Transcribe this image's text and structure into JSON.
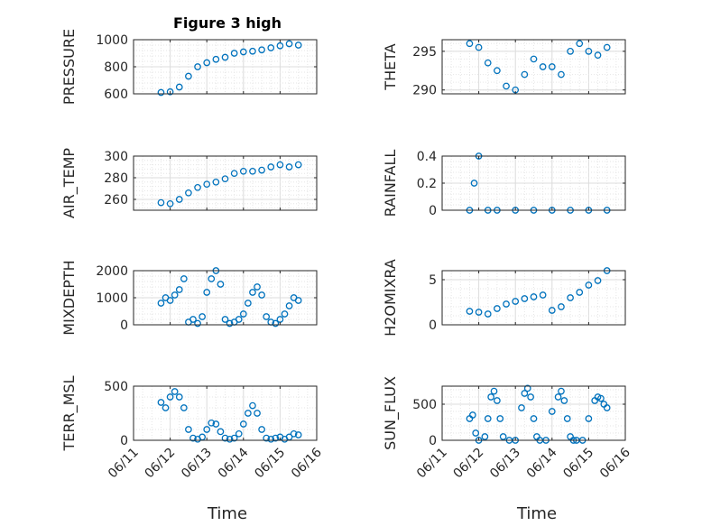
{
  "figure": {
    "title": "Figure 3 high",
    "xlabel": "Time",
    "date_ticks": [
      "06/11",
      "06/12",
      "06/13",
      "06/14",
      "06/15",
      "06/16"
    ],
    "marker": "open-circle",
    "marker_color": "#0072BD",
    "grid": true,
    "minor_grid": true
  },
  "chart_data": [
    {
      "type": "scatter",
      "ylabel": "PRESSURE",
      "ylim": [
        600,
        1000
      ],
      "yticks": [
        600,
        800,
        1000
      ],
      "xlim": [
        "06/11",
        "06/16"
      ],
      "x": [
        "06/11 18:00",
        "06/12 00:00",
        "06/12 06:00",
        "06/12 12:00",
        "06/12 18:00",
        "06/13 00:00",
        "06/13 06:00",
        "06/13 12:00",
        "06/13 18:00",
        "06/14 00:00",
        "06/14 06:00",
        "06/14 12:00",
        "06/14 18:00",
        "06/15 00:00",
        "06/15 06:00",
        "06/15 12:00"
      ],
      "y": [
        610,
        615,
        650,
        730,
        800,
        830,
        855,
        870,
        900,
        910,
        915,
        925,
        940,
        955,
        970,
        960
      ]
    },
    {
      "type": "scatter",
      "ylabel": "THETA",
      "ylim": [
        289.5,
        296.5
      ],
      "yticks": [
        290,
        295
      ],
      "xlim": [
        "06/11",
        "06/16"
      ],
      "x": [
        "06/11 18:00",
        "06/12 00:00",
        "06/12 06:00",
        "06/12 12:00",
        "06/12 18:00",
        "06/13 00:00",
        "06/13 06:00",
        "06/13 12:00",
        "06/13 18:00",
        "06/14 00:00",
        "06/14 06:00",
        "06/14 12:00",
        "06/14 18:00",
        "06/15 00:00",
        "06/15 06:00",
        "06/15 12:00"
      ],
      "y": [
        296.0,
        295.5,
        293.5,
        292.5,
        290.5,
        290.0,
        292.0,
        294.0,
        293.0,
        293.0,
        292.0,
        295.0,
        296.0,
        295.0,
        294.5,
        295.5
      ]
    },
    {
      "type": "scatter",
      "ylabel": "AIR_TEMP",
      "ylim": [
        250,
        300
      ],
      "yticks": [
        260,
        280,
        300
      ],
      "xlim": [
        "06/11",
        "06/16"
      ],
      "x": [
        "06/11 18:00",
        "06/12 00:00",
        "06/12 06:00",
        "06/12 12:00",
        "06/12 18:00",
        "06/13 00:00",
        "06/13 06:00",
        "06/13 12:00",
        "06/13 18:00",
        "06/14 00:00",
        "06/14 06:00",
        "06/14 12:00",
        "06/14 18:00",
        "06/15 00:00",
        "06/15 06:00",
        "06/15 12:00"
      ],
      "y": [
        257,
        256,
        260,
        266,
        271,
        274,
        276,
        279,
        284,
        286,
        286,
        287,
        290,
        292,
        290,
        292
      ]
    },
    {
      "type": "scatter",
      "ylabel": "RAINFALL",
      "ylim": [
        0,
        0.4
      ],
      "yticks": [
        0,
        0.2,
        0.4
      ],
      "xlim": [
        "06/11",
        "06/16"
      ],
      "x": [
        "06/11 18:00",
        "06/11 21:00",
        "06/12 00:00",
        "06/12 06:00",
        "06/12 12:00",
        "06/13 00:00",
        "06/13 12:00",
        "06/14 00:00",
        "06/14 12:00",
        "06/15 00:00",
        "06/15 12:00"
      ],
      "y": [
        0,
        0.2,
        0.4,
        0,
        0,
        0,
        0,
        0,
        0,
        0,
        0
      ]
    },
    {
      "type": "scatter",
      "ylabel": "MIXDEPTH",
      "ylim": [
        0,
        2000
      ],
      "yticks": [
        0,
        1000,
        2000
      ],
      "xlim": [
        "06/11",
        "06/16"
      ],
      "x": [
        "06/11 18:00",
        "06/11 21:00",
        "06/12 00:00",
        "06/12 03:00",
        "06/12 06:00",
        "06/12 09:00",
        "06/12 12:00",
        "06/12 15:00",
        "06/12 18:00",
        "06/12 21:00",
        "06/13 00:00",
        "06/13 03:00",
        "06/13 06:00",
        "06/13 09:00",
        "06/13 12:00",
        "06/13 15:00",
        "06/13 18:00",
        "06/13 21:00",
        "06/14 00:00",
        "06/14 03:00",
        "06/14 06:00",
        "06/14 09:00",
        "06/14 12:00",
        "06/14 15:00",
        "06/14 18:00",
        "06/14 21:00",
        "06/15 00:00",
        "06/15 03:00",
        "06/15 06:00",
        "06/15 09:00",
        "06/15 12:00"
      ],
      "y": [
        800,
        1000,
        900,
        1100,
        1300,
        1700,
        100,
        200,
        50,
        300,
        1200,
        1700,
        2000,
        1500,
        200,
        50,
        100,
        200,
        400,
        800,
        1200,
        1400,
        1100,
        300,
        100,
        50,
        200,
        400,
        700,
        1000,
        900
      ]
    },
    {
      "type": "scatter",
      "ylabel": "H2OMIXRA",
      "ylim": [
        0,
        6
      ],
      "yticks": [
        0,
        5
      ],
      "xlim": [
        "06/11",
        "06/16"
      ],
      "x": [
        "06/11 18:00",
        "06/12 00:00",
        "06/12 06:00",
        "06/12 12:00",
        "06/12 18:00",
        "06/13 00:00",
        "06/13 06:00",
        "06/13 12:00",
        "06/13 18:00",
        "06/14 00:00",
        "06/14 06:00",
        "06/14 12:00",
        "06/14 18:00",
        "06/15 00:00",
        "06/15 06:00",
        "06/15 12:00"
      ],
      "y": [
        1.5,
        1.4,
        1.2,
        1.8,
        2.3,
        2.6,
        2.9,
        3.1,
        3.3,
        1.6,
        2.0,
        3.0,
        3.6,
        4.4,
        4.9,
        6.0
      ]
    },
    {
      "type": "scatter",
      "ylabel": "TERR_MSL",
      "ylim": [
        0,
        500
      ],
      "yticks": [
        0,
        500
      ],
      "xlim": [
        "06/11",
        "06/16"
      ],
      "x": [
        "06/11 18:00",
        "06/11 21:00",
        "06/12 00:00",
        "06/12 03:00",
        "06/12 06:00",
        "06/12 09:00",
        "06/12 12:00",
        "06/12 15:00",
        "06/12 18:00",
        "06/12 21:00",
        "06/13 00:00",
        "06/13 03:00",
        "06/13 06:00",
        "06/13 09:00",
        "06/13 12:00",
        "06/13 15:00",
        "06/13 18:00",
        "06/13 21:00",
        "06/14 00:00",
        "06/14 03:00",
        "06/14 06:00",
        "06/14 09:00",
        "06/14 12:00",
        "06/14 15:00",
        "06/14 18:00",
        "06/14 21:00",
        "06/15 00:00",
        "06/15 03:00",
        "06/15 06:00",
        "06/15 09:00",
        "06/15 12:00"
      ],
      "y": [
        350,
        300,
        400,
        450,
        400,
        300,
        100,
        20,
        10,
        30,
        100,
        160,
        150,
        80,
        20,
        10,
        20,
        60,
        150,
        250,
        320,
        250,
        100,
        20,
        10,
        20,
        30,
        10,
        30,
        60,
        50
      ]
    },
    {
      "type": "scatter",
      "ylabel": "SUN_FLUX",
      "ylim": [
        0,
        750
      ],
      "yticks": [
        0,
        500
      ],
      "xlim": [
        "06/11",
        "06/16"
      ],
      "x": [
        "06/11 18:00",
        "06/11 20:00",
        "06/11 22:00",
        "06/12 00:00",
        "06/12 04:00",
        "06/12 06:00",
        "06/12 08:00",
        "06/12 10:00",
        "06/12 12:00",
        "06/12 14:00",
        "06/12 16:00",
        "06/12 20:00",
        "06/13 00:00",
        "06/13 04:00",
        "06/13 06:00",
        "06/13 08:00",
        "06/13 10:00",
        "06/13 12:00",
        "06/13 14:00",
        "06/13 16:00",
        "06/13 20:00",
        "06/14 00:00",
        "06/14 04:00",
        "06/14 06:00",
        "06/14 08:00",
        "06/14 10:00",
        "06/14 12:00",
        "06/14 14:00",
        "06/14 16:00",
        "06/14 20:00",
        "06/15 00:00",
        "06/15 04:00",
        "06/15 06:00",
        "06/15 08:00",
        "06/15 10:00",
        "06/15 12:00"
      ],
      "y": [
        300,
        350,
        100,
        0,
        50,
        300,
        600,
        680,
        550,
        300,
        50,
        0,
        0,
        450,
        650,
        720,
        600,
        300,
        50,
        0,
        0,
        400,
        600,
        680,
        550,
        300,
        50,
        0,
        0,
        0,
        300,
        550,
        600,
        580,
        500,
        450
      ]
    }
  ]
}
